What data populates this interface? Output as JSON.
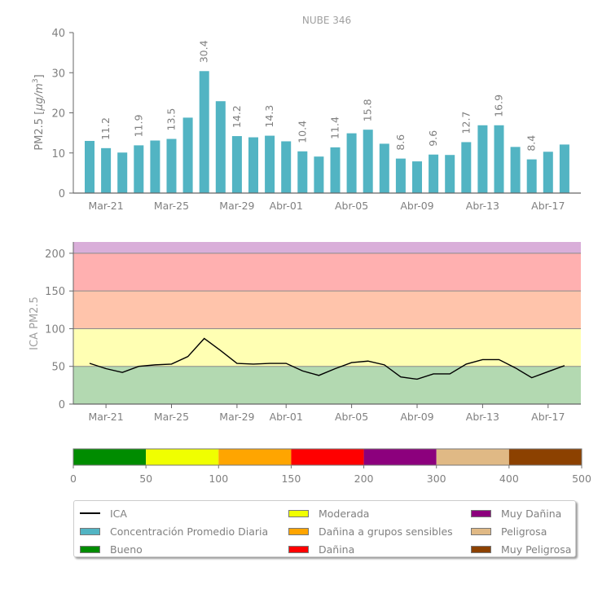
{
  "title": "NUBE 346",
  "chart_data": [
    {
      "type": "bar",
      "title": "NUBE 346",
      "xlabel": "",
      "ylabel": "PM2.5 [μg/m3]",
      "ylabel_parts": {
        "prefix": "PM2.5 [",
        "unit_main": "μg/m",
        "unit_sup": "3",
        "suffix": "]"
      },
      "ylim": [
        0,
        40
      ],
      "yticks": [
        0,
        10,
        20,
        30,
        40
      ],
      "x": [
        "Mar-20",
        "Mar-21",
        "Mar-22",
        "Mar-23",
        "Mar-24",
        "Mar-25",
        "Mar-26",
        "Mar-27",
        "Mar-28",
        "Mar-29",
        "Mar-30",
        "Mar-31",
        "Abr-01",
        "Abr-02",
        "Abr-03",
        "Abr-04",
        "Abr-05",
        "Abr-06",
        "Abr-07",
        "Abr-08",
        "Abr-09",
        "Abr-10",
        "Abr-11",
        "Abr-12",
        "Abr-13",
        "Abr-14",
        "Abr-15",
        "Abr-16",
        "Abr-17",
        "Abr-18"
      ],
      "xtick_labels": [
        "Mar-21",
        "Mar-25",
        "Mar-29",
        "Abr-01",
        "Abr-05",
        "Abr-09",
        "Abr-13",
        "Abr-17"
      ],
      "series": [
        {
          "name": "Concentración Promedio Diaria",
          "color": "#52b4c3",
          "values": [
            13.0,
            11.2,
            10.1,
            11.9,
            13.1,
            13.5,
            18.8,
            30.4,
            22.9,
            14.2,
            13.9,
            14.3,
            12.9,
            10.4,
            9.1,
            11.4,
            14.9,
            15.8,
            12.3,
            8.6,
            7.9,
            9.6,
            9.5,
            12.7,
            16.9,
            16.9,
            11.5,
            8.4,
            10.3,
            12.1
          ]
        }
      ],
      "data_labels": [
        {
          "x": "Mar-21",
          "text": "11.2"
        },
        {
          "x": "Mar-23",
          "text": "11.9"
        },
        {
          "x": "Mar-25",
          "text": "13.5"
        },
        {
          "x": "Mar-27",
          "text": "30.4"
        },
        {
          "x": "Mar-29",
          "text": "14.2"
        },
        {
          "x": "Mar-31",
          "text": "14.3"
        },
        {
          "x": "Abr-02",
          "text": "10.4"
        },
        {
          "x": "Abr-04",
          "text": "11.4"
        },
        {
          "x": "Abr-06",
          "text": "15.8"
        },
        {
          "x": "Abr-08",
          "text": "8.6"
        },
        {
          "x": "Abr-10",
          "text": "9.6"
        },
        {
          "x": "Abr-12",
          "text": "12.7"
        },
        {
          "x": "Abr-14",
          "text": "16.9"
        },
        {
          "x": "Abr-16",
          "text": "8.4"
        }
      ],
      "grid": false
    },
    {
      "type": "line",
      "title": "",
      "xlabel": "",
      "ylabel": "ICA PM2.5",
      "ylim": [
        0,
        215
      ],
      "yticks": [
        0,
        50,
        100,
        150,
        200
      ],
      "xtick_labels": [
        "Mar-21",
        "Mar-25",
        "Mar-29",
        "Abr-01",
        "Abr-05",
        "Abr-09",
        "Abr-13",
        "Abr-17"
      ],
      "bands": [
        {
          "from": 0,
          "to": 50,
          "color": "#b3d9b1"
        },
        {
          "from": 50,
          "to": 100,
          "color": "#ffffb3"
        },
        {
          "from": 100,
          "to": 150,
          "color": "#ffc4ab"
        },
        {
          "from": 150,
          "to": 200,
          "color": "#ffb0b0"
        },
        {
          "from": 200,
          "to": 215,
          "color": "#d9aed9"
        }
      ],
      "series": [
        {
          "name": "ICA",
          "color": "#000000",
          "values": [
            54,
            47,
            42,
            50,
            52,
            53,
            63,
            87,
            71,
            54,
            53,
            54,
            54,
            44,
            38,
            47,
            55,
            57,
            52,
            36,
            33,
            40,
            40,
            53,
            59,
            59,
            48,
            35,
            43,
            51
          ]
        }
      ],
      "grid": false
    },
    {
      "type": "bar",
      "title": "",
      "orientation": "horizontal-colorbar",
      "segments": [
        {
          "from": 0,
          "to": 50,
          "color": "#008c00"
        },
        {
          "from": 50,
          "to": 100,
          "color": "#f0ff00"
        },
        {
          "from": 100,
          "to": 150,
          "color": "#ffa500"
        },
        {
          "from": 150,
          "to": 200,
          "color": "#ff0000"
        },
        {
          "from": 200,
          "to": 300,
          "color": "#8c007d"
        },
        {
          "from": 300,
          "to": 400,
          "color": "#e0b985"
        },
        {
          "from": 400,
          "to": 500,
          "color": "#8c4100"
        }
      ],
      "tick_labels": [
        "0",
        "50",
        "100",
        "150",
        "200",
        "300",
        "400",
        "500"
      ]
    }
  ],
  "legend": {
    "placement": "bottom",
    "columns": [
      [
        {
          "label": "ICA",
          "kind": "line",
          "color": "#000000"
        },
        {
          "label": "Concentración Promedio Diaria",
          "kind": "swatch",
          "color": "#52b4c3"
        },
        {
          "label": "Bueno",
          "kind": "swatch",
          "color": "#008c00"
        }
      ],
      [
        {
          "label": "Moderada",
          "kind": "swatch",
          "color": "#f0ff00"
        },
        {
          "label": "Dañina a grupos sensibles",
          "kind": "swatch",
          "color": "#ffa500"
        },
        {
          "label": "Dañina",
          "kind": "swatch",
          "color": "#ff0000"
        }
      ],
      [
        {
          "label": "Muy Dañina",
          "kind": "swatch",
          "color": "#8c007d"
        },
        {
          "label": "Peligrosa",
          "kind": "swatch",
          "color": "#e0b985"
        },
        {
          "label": "Muy Peligrosa",
          "kind": "swatch",
          "color": "#8c4100"
        }
      ]
    ]
  }
}
